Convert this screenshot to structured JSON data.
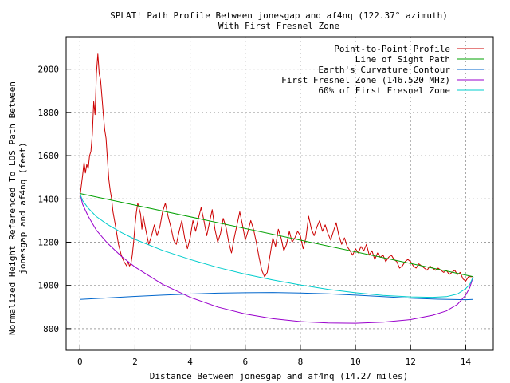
{
  "chart_data": {
    "type": "line",
    "title": "SPLAT! Path Profile Between jonesgap and af4nq (122.37° azimuth)",
    "subtitle": "With First Fresnel Zone",
    "xlabel": "Distance Between jonesgap and af4nq (14.27 miles)",
    "ylabel": [
      "Normalized Height Referenced To LOS Path Between",
      "jonesgap and af4nq (feet)"
    ],
    "xlim": [
      -0.5,
      15
    ],
    "ylim": [
      700,
      2150
    ],
    "xticks": [
      0,
      2,
      4,
      6,
      8,
      10,
      12,
      14
    ],
    "yticks": [
      800,
      1000,
      1200,
      1400,
      1600,
      1800,
      2000
    ],
    "grid": true,
    "legend_position": "top-right",
    "series": [
      {
        "name": "Point-to-Point Profile",
        "color": "#cc0000",
        "points": [
          [
            0,
            1410
          ],
          [
            0.1,
            1510
          ],
          [
            0.15,
            1570
          ],
          [
            0.2,
            1520
          ],
          [
            0.25,
            1560
          ],
          [
            0.3,
            1540
          ],
          [
            0.35,
            1600
          ],
          [
            0.4,
            1620
          ],
          [
            0.45,
            1700
          ],
          [
            0.5,
            1850
          ],
          [
            0.55,
            1790
          ],
          [
            0.6,
            1980
          ],
          [
            0.65,
            2070
          ],
          [
            0.7,
            1980
          ],
          [
            0.75,
            1950
          ],
          [
            0.8,
            1870
          ],
          [
            0.85,
            1790
          ],
          [
            0.9,
            1720
          ],
          [
            0.95,
            1680
          ],
          [
            1.0,
            1580
          ],
          [
            1.05,
            1490
          ],
          [
            1.1,
            1440
          ],
          [
            1.15,
            1400
          ],
          [
            1.2,
            1340
          ],
          [
            1.3,
            1270
          ],
          [
            1.4,
            1190
          ],
          [
            1.5,
            1140
          ],
          [
            1.6,
            1110
          ],
          [
            1.7,
            1090
          ],
          [
            1.75,
            1110
          ],
          [
            1.8,
            1090
          ],
          [
            1.85,
            1100
          ],
          [
            1.9,
            1140
          ],
          [
            1.95,
            1200
          ],
          [
            2.0,
            1280
          ],
          [
            2.05,
            1340
          ],
          [
            2.1,
            1380
          ],
          [
            2.2,
            1330
          ],
          [
            2.25,
            1260
          ],
          [
            2.3,
            1320
          ],
          [
            2.4,
            1250
          ],
          [
            2.5,
            1190
          ],
          [
            2.6,
            1230
          ],
          [
            2.7,
            1280
          ],
          [
            2.8,
            1230
          ],
          [
            2.9,
            1270
          ],
          [
            3.0,
            1340
          ],
          [
            3.1,
            1380
          ],
          [
            3.2,
            1320
          ],
          [
            3.3,
            1270
          ],
          [
            3.4,
            1210
          ],
          [
            3.5,
            1190
          ],
          [
            3.6,
            1250
          ],
          [
            3.7,
            1300
          ],
          [
            3.8,
            1220
          ],
          [
            3.9,
            1170
          ],
          [
            4.0,
            1220
          ],
          [
            4.1,
            1300
          ],
          [
            4.2,
            1250
          ],
          [
            4.3,
            1310
          ],
          [
            4.4,
            1360
          ],
          [
            4.5,
            1300
          ],
          [
            4.6,
            1230
          ],
          [
            4.7,
            1290
          ],
          [
            4.8,
            1350
          ],
          [
            4.9,
            1260
          ],
          [
            5.0,
            1200
          ],
          [
            5.1,
            1240
          ],
          [
            5.2,
            1310
          ],
          [
            5.3,
            1270
          ],
          [
            5.4,
            1200
          ],
          [
            5.5,
            1150
          ],
          [
            5.6,
            1220
          ],
          [
            5.7,
            1280
          ],
          [
            5.8,
            1340
          ],
          [
            5.9,
            1280
          ],
          [
            6.0,
            1210
          ],
          [
            6.1,
            1250
          ],
          [
            6.2,
            1300
          ],
          [
            6.3,
            1260
          ],
          [
            6.4,
            1200
          ],
          [
            6.5,
            1130
          ],
          [
            6.6,
            1070
          ],
          [
            6.7,
            1040
          ],
          [
            6.8,
            1060
          ],
          [
            6.9,
            1140
          ],
          [
            7.0,
            1220
          ],
          [
            7.1,
            1180
          ],
          [
            7.2,
            1260
          ],
          [
            7.3,
            1220
          ],
          [
            7.4,
            1160
          ],
          [
            7.5,
            1190
          ],
          [
            7.6,
            1250
          ],
          [
            7.7,
            1200
          ],
          [
            7.8,
            1220
          ],
          [
            7.9,
            1250
          ],
          [
            8.0,
            1230
          ],
          [
            8.1,
            1170
          ],
          [
            8.2,
            1220
          ],
          [
            8.3,
            1320
          ],
          [
            8.4,
            1260
          ],
          [
            8.5,
            1230
          ],
          [
            8.6,
            1270
          ],
          [
            8.7,
            1300
          ],
          [
            8.8,
            1250
          ],
          [
            8.9,
            1280
          ],
          [
            9.0,
            1240
          ],
          [
            9.1,
            1210
          ],
          [
            9.2,
            1250
          ],
          [
            9.3,
            1290
          ],
          [
            9.4,
            1230
          ],
          [
            9.5,
            1190
          ],
          [
            9.6,
            1220
          ],
          [
            9.7,
            1180
          ],
          [
            9.8,
            1160
          ],
          [
            9.9,
            1140
          ],
          [
            10.0,
            1170
          ],
          [
            10.1,
            1150
          ],
          [
            10.2,
            1180
          ],
          [
            10.3,
            1160
          ],
          [
            10.4,
            1190
          ],
          [
            10.5,
            1140
          ],
          [
            10.6,
            1160
          ],
          [
            10.7,
            1120
          ],
          [
            10.8,
            1150
          ],
          [
            10.9,
            1130
          ],
          [
            11.0,
            1140
          ],
          [
            11.1,
            1110
          ],
          [
            11.2,
            1130
          ],
          [
            11.3,
            1140
          ],
          [
            11.4,
            1120
          ],
          [
            11.5,
            1110
          ],
          [
            11.6,
            1080
          ],
          [
            11.7,
            1090
          ],
          [
            11.8,
            1110
          ],
          [
            11.9,
            1120
          ],
          [
            12.0,
            1110
          ],
          [
            12.1,
            1090
          ],
          [
            12.2,
            1080
          ],
          [
            12.3,
            1100
          ],
          [
            12.4,
            1090
          ],
          [
            12.5,
            1080
          ],
          [
            12.6,
            1070
          ],
          [
            12.7,
            1090
          ],
          [
            12.8,
            1080
          ],
          [
            12.9,
            1070
          ],
          [
            13.0,
            1080
          ],
          [
            13.1,
            1070
          ],
          [
            13.2,
            1060
          ],
          [
            13.3,
            1070
          ],
          [
            13.4,
            1050
          ],
          [
            13.5,
            1060
          ],
          [
            13.6,
            1070
          ],
          [
            13.7,
            1050
          ],
          [
            13.8,
            1060
          ],
          [
            13.9,
            1030
          ],
          [
            14.0,
            1020
          ],
          [
            14.1,
            1040
          ],
          [
            14.27,
            1040
          ]
        ]
      },
      {
        "name": "Line of Sight Path",
        "color": "#00a000",
        "points": [
          [
            0,
            1425
          ],
          [
            14.27,
            1040
          ]
        ]
      },
      {
        "name": "Earth's Curvature Contour",
        "color": "#0066cc",
        "points": [
          [
            0,
            935
          ],
          [
            1,
            942
          ],
          [
            2,
            949
          ],
          [
            3,
            955
          ],
          [
            4,
            960
          ],
          [
            5,
            964
          ],
          [
            6,
            966
          ],
          [
            7,
            967
          ],
          [
            8,
            965
          ],
          [
            9,
            961
          ],
          [
            10,
            955
          ],
          [
            11,
            948
          ],
          [
            12,
            941
          ],
          [
            13,
            936
          ],
          [
            14,
            934
          ],
          [
            14.27,
            935
          ]
        ]
      },
      {
        "name": "First Fresnel Zone (146.520 MHz)",
        "color": "#9900cc",
        "points": [
          [
            0,
            1425
          ],
          [
            0.1,
            1375
          ],
          [
            0.3,
            1320
          ],
          [
            0.6,
            1255
          ],
          [
            1,
            1195
          ],
          [
            1.5,
            1135
          ],
          [
            2,
            1085
          ],
          [
            3,
            1005
          ],
          [
            4,
            945
          ],
          [
            5,
            900
          ],
          [
            6,
            868
          ],
          [
            7,
            846
          ],
          [
            8,
            833
          ],
          [
            9,
            826
          ],
          [
            10,
            825
          ],
          [
            11,
            830
          ],
          [
            12,
            842
          ],
          [
            12.8,
            862
          ],
          [
            13.3,
            882
          ],
          [
            13.7,
            912
          ],
          [
            14.0,
            955
          ],
          [
            14.15,
            990
          ],
          [
            14.27,
            1040
          ]
        ]
      },
      {
        "name": "60% of First Fresnel Zone",
        "color": "#00cccc",
        "points": [
          [
            0,
            1425
          ],
          [
            0.1,
            1392
          ],
          [
            0.3,
            1357
          ],
          [
            0.6,
            1318
          ],
          [
            1,
            1282
          ],
          [
            1.5,
            1245
          ],
          [
            2,
            1213
          ],
          [
            3,
            1162
          ],
          [
            4,
            1120
          ],
          [
            5,
            1083
          ],
          [
            6,
            1052
          ],
          [
            7,
            1025
          ],
          [
            8,
            1002
          ],
          [
            9,
            982
          ],
          [
            10,
            966
          ],
          [
            11,
            954
          ],
          [
            12,
            947
          ],
          [
            12.8,
            945
          ],
          [
            13.3,
            948
          ],
          [
            13.7,
            960
          ],
          [
            14.0,
            985
          ],
          [
            14.15,
            1005
          ],
          [
            14.27,
            1040
          ]
        ]
      }
    ]
  }
}
